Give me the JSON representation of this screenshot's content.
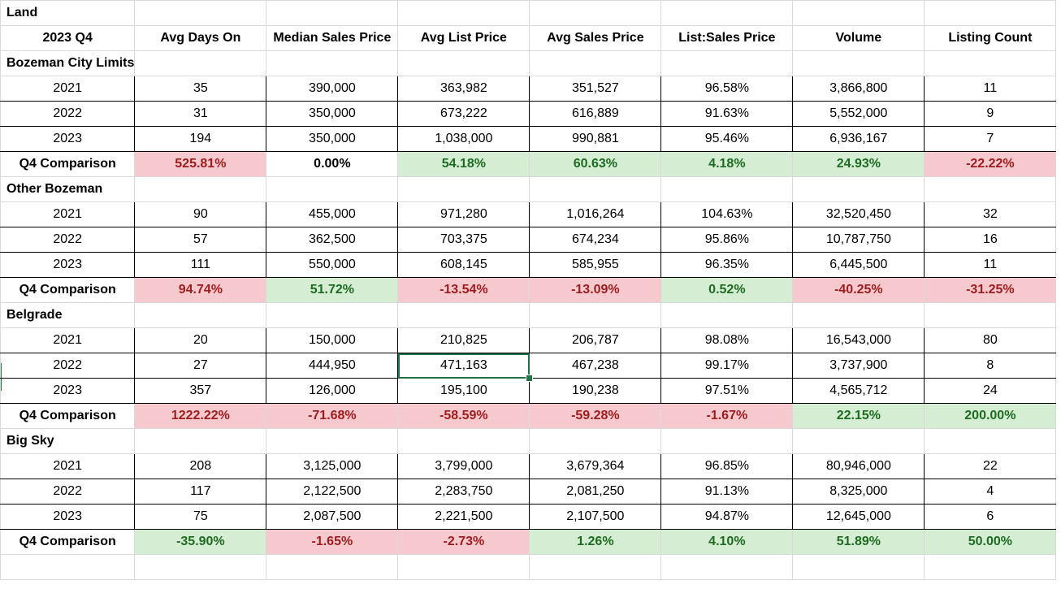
{
  "sheet": {
    "title": "Land",
    "headers": [
      "2023 Q4",
      "Avg Days On",
      "Median Sales Price",
      "Avg List Price",
      "Avg Sales Price",
      "List:Sales Price",
      "Volume",
      "Listing Count"
    ],
    "sections": [
      {
        "name": "Bozeman City Limits",
        "rows": [
          [
            "2021",
            "35",
            "390,000",
            "363,982",
            "351,527",
            "96.58%",
            "3,866,800",
            "11"
          ],
          [
            "2022",
            "31",
            "350,000",
            "673,222",
            "616,889",
            "91.63%",
            "5,552,000",
            "9"
          ],
          [
            "2023",
            "194",
            "350,000",
            "1,038,000",
            "990,881",
            "95.46%",
            "6,936,167",
            "7"
          ]
        ],
        "comparison": {
          "label": "Q4 Comparison",
          "values": [
            "525.81%",
            "0.00%",
            "54.18%",
            "60.63%",
            "4.18%",
            "24.93%",
            "-22.22%"
          ],
          "status": [
            "neg",
            "neutral",
            "pos",
            "pos",
            "pos",
            "pos",
            "neg"
          ]
        }
      },
      {
        "name": "Other Bozeman",
        "rows": [
          [
            "2021",
            "90",
            "455,000",
            "971,280",
            "1,016,264",
            "104.63%",
            "32,520,450",
            "32"
          ],
          [
            "2022",
            "57",
            "362,500",
            "703,375",
            "674,234",
            "95.86%",
            "10,787,750",
            "16"
          ],
          [
            "2023",
            "111",
            "550,000",
            "608,145",
            "585,955",
            "96.35%",
            "6,445,500",
            "11"
          ]
        ],
        "comparison": {
          "label": "Q4 Comparison",
          "values": [
            "94.74%",
            "51.72%",
            "-13.54%",
            "-13.09%",
            "0.52%",
            "-40.25%",
            "-31.25%"
          ],
          "status": [
            "neg",
            "pos",
            "neg",
            "neg",
            "pos",
            "neg",
            "neg"
          ]
        }
      },
      {
        "name": "Belgrade",
        "rows": [
          [
            "2021",
            "20",
            "150,000",
            "210,825",
            "206,787",
            "98.08%",
            "16,543,000",
            "80"
          ],
          [
            "2022",
            "27",
            "444,950",
            "471,163",
            "467,238",
            "99.17%",
            "3,737,900",
            "8"
          ],
          [
            "2023",
            "357",
            "126,000",
            "195,100",
            "190,238",
            "97.51%",
            "4,565,712",
            "24"
          ]
        ],
        "comparison": {
          "label": "Q4 Comparison",
          "values": [
            "1222.22%",
            "-71.68%",
            "-58.59%",
            "-59.28%",
            "-1.67%",
            "22.15%",
            "200.00%"
          ],
          "status": [
            "neg",
            "neg",
            "neg",
            "neg",
            "neg",
            "pos",
            "pos"
          ]
        }
      },
      {
        "name": "Big Sky",
        "rows": [
          [
            "2021",
            "208",
            "3,125,000",
            "3,799,000",
            "3,679,364",
            "96.85%",
            "80,946,000",
            "22"
          ],
          [
            "2022",
            "117",
            "2,122,500",
            "2,283,750",
            "2,081,250",
            "91.13%",
            "8,325,000",
            "4"
          ],
          [
            "2023",
            "75",
            "2,087,500",
            "2,221,500",
            "2,107,500",
            "94.87%",
            "12,645,000",
            "6"
          ]
        ],
        "comparison": {
          "label": "Q4 Comparison",
          "values": [
            "-35.90%",
            "-1.65%",
            "-2.73%",
            "1.26%",
            "4.10%",
            "51.89%",
            "50.00%"
          ],
          "status": [
            "pos",
            "neg",
            "neg",
            "pos",
            "pos",
            "pos",
            "pos"
          ]
        }
      }
    ]
  },
  "colors": {
    "positive_fill": "#d5edd3",
    "positive_text": "#1e6b22",
    "negative_fill": "#f6c9ce",
    "negative_text": "#9c1d1d",
    "selection": "#217346"
  }
}
